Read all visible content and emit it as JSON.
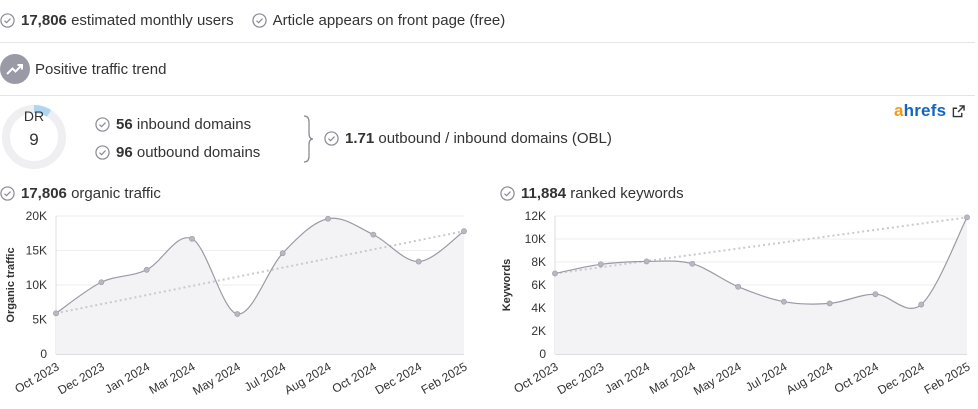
{
  "top": {
    "users_value": "17,806",
    "users_label": "estimated monthly users",
    "front_page_label": "Article appears on front page (free)"
  },
  "trend": {
    "label": "Positive traffic trend",
    "icon": "trending-up-icon"
  },
  "domain_rating": {
    "label": "DR",
    "value": "9",
    "level": 0.09
  },
  "links": {
    "inbound_value": "56",
    "inbound_label": "inbound domains",
    "outbound_value": "96",
    "outbound_label": "outbound domains",
    "obl_value": "1.71",
    "obl_label": "outbound / inbound domains (OBL)"
  },
  "brand": {
    "a": "a",
    "rest": "hrefs",
    "icon": "external-link-icon"
  },
  "traffic_header": {
    "value": "17,806",
    "label": "organic traffic"
  },
  "keywords_header": {
    "value": "11,884",
    "label": "ranked keywords"
  },
  "colors": {
    "check": "#8a8a95",
    "line": "#9a9aa6",
    "area": "#f3f3f6",
    "trend": "#c9c9d0",
    "dr_fill": "#aed6f1",
    "dr_track": "#efeff1",
    "brand_a": "#f39c12",
    "brand_rest": "#1565c0"
  },
  "chart_data": [
    {
      "type": "area",
      "ylabel": "Organic traffic",
      "ylim": [
        0,
        20000
      ],
      "yticks": [
        "0",
        "5K",
        "10K",
        "15K",
        "20K"
      ],
      "ytick_values": [
        0,
        5000,
        10000,
        15000,
        20000
      ],
      "x": [
        "Oct 2023",
        "Dec 2023",
        "Jan 2024",
        "Mar 2024",
        "May 2024",
        "Jul 2024",
        "Aug 2024",
        "Oct 2024",
        "Dec 2024",
        "Feb 2025"
      ],
      "values": [
        5900,
        10400,
        12200,
        16700,
        5800,
        14600,
        19600,
        17300,
        13400,
        17800
      ],
      "trendline": [
        5900,
        17800
      ],
      "grid": true
    },
    {
      "type": "area",
      "ylabel": "Keywords",
      "ylim": [
        0,
        12000
      ],
      "yticks": [
        "0",
        "2K",
        "4K",
        "6K",
        "8K",
        "10K",
        "12K"
      ],
      "ytick_values": [
        0,
        2000,
        4000,
        6000,
        8000,
        10000,
        12000
      ],
      "x": [
        "Oct 2023",
        "Dec 2023",
        "Jan 2024",
        "Mar 2024",
        "May 2024",
        "Jul 2024",
        "Aug 2024",
        "Oct 2024",
        "Dec 2024",
        "Feb 2025"
      ],
      "values": [
        7000,
        7800,
        8050,
        7850,
        5850,
        4550,
        4400,
        5200,
        4300,
        11880
      ],
      "trendline": [
        7000,
        11880
      ],
      "grid": true
    }
  ]
}
